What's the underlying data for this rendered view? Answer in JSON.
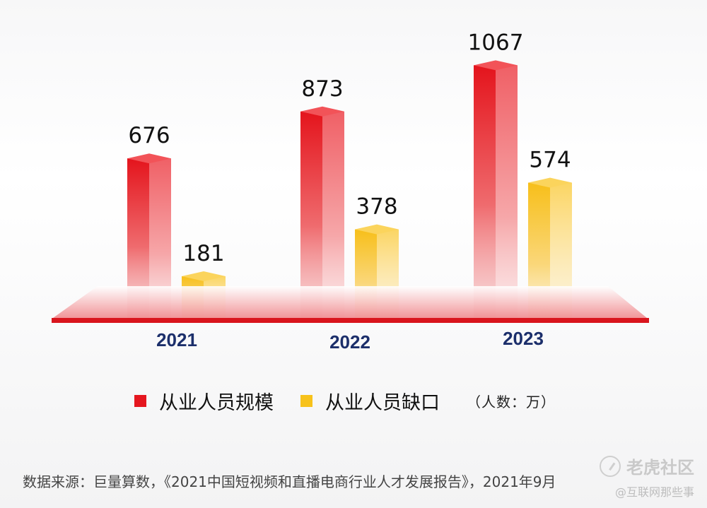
{
  "chart_data": {
    "type": "bar",
    "categories": [
      "2021",
      "2022",
      "2023"
    ],
    "series": [
      {
        "name": "从业人员规模",
        "values": [
          676,
          873,
          1067
        ],
        "color": "#e5161f"
      },
      {
        "name": "从业人员缺口",
        "values": [
          181,
          378,
          574
        ],
        "color": "#f7c21b"
      }
    ],
    "unit_note": "（人数：万）",
    "legend_position": "bottom"
  },
  "source_text": "数据来源：巨量算数，《2021中国短视频和直播电商行业人才发展报告》，2021年9月",
  "watermark": {
    "main": "老虎社区",
    "sub": "@互联网那些事"
  }
}
